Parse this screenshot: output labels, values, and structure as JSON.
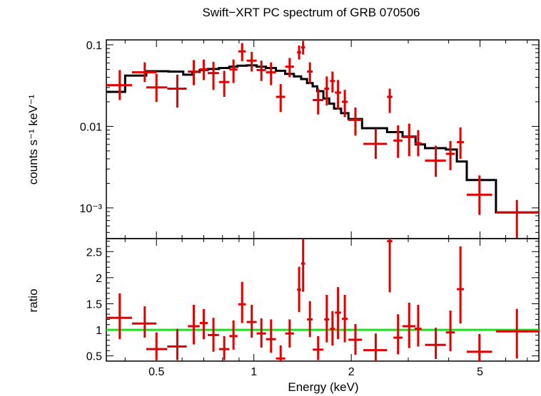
{
  "chart_data": [
    {
      "type": "scatter",
      "title": "Swift−XRT PC spectrum of GRB 070506",
      "xlabel": "",
      "ylabel": "counts s⁻¹ keV⁻¹",
      "xscale": "log",
      "yscale": "log",
      "xlim": [
        0.35,
        7.6
      ],
      "ylim": [
        0.00042,
        0.115
      ],
      "x_tick_labels": [],
      "y_ticks": [
        {
          "value": 0.1,
          "label": "0.1"
        },
        {
          "value": 0.01,
          "label": "0.01"
        },
        {
          "value": 0.001,
          "label": "10⁻³"
        }
      ],
      "colors": {
        "data": "#e00000",
        "model": "#000000"
      },
      "series": [
        {
          "style": "crosses",
          "points": [
            {
              "x": 0.385,
              "xlo": 0.35,
              "xhi": 0.42,
              "y": 0.032,
              "ylo": 0.021,
              "yhi": 0.049
            },
            {
              "x": 0.46,
              "xlo": 0.42,
              "xhi": 0.5,
              "y": 0.046,
              "ylo": 0.035,
              "yhi": 0.061
            },
            {
              "x": 0.5,
              "xlo": 0.465,
              "xhi": 0.54,
              "y": 0.03,
              "ylo": 0.02,
              "yhi": 0.044
            },
            {
              "x": 0.58,
              "xlo": 0.54,
              "xhi": 0.62,
              "y": 0.029,
              "ylo": 0.017,
              "yhi": 0.043
            },
            {
              "x": 0.652,
              "xlo": 0.625,
              "xhi": 0.68,
              "y": 0.047,
              "ylo": 0.032,
              "yhi": 0.065
            },
            {
              "x": 0.7,
              "xlo": 0.68,
              "xhi": 0.72,
              "y": 0.05,
              "ylo": 0.037,
              "yhi": 0.066
            },
            {
              "x": 0.75,
              "xlo": 0.72,
              "xhi": 0.78,
              "y": 0.045,
              "ylo": 0.028,
              "yhi": 0.062
            },
            {
              "x": 0.81,
              "xlo": 0.78,
              "xhi": 0.84,
              "y": 0.035,
              "ylo": 0.023,
              "yhi": 0.048
            },
            {
              "x": 0.865,
              "xlo": 0.84,
              "xhi": 0.89,
              "y": 0.05,
              "ylo": 0.034,
              "yhi": 0.066
            },
            {
              "x": 0.92,
              "xlo": 0.895,
              "xhi": 0.945,
              "y": 0.083,
              "ylo": 0.063,
              "yhi": 0.105
            },
            {
              "x": 0.985,
              "xlo": 0.95,
              "xhi": 1.02,
              "y": 0.064,
              "ylo": 0.047,
              "yhi": 0.082
            },
            {
              "x": 1.055,
              "xlo": 1.02,
              "xhi": 1.09,
              "y": 0.049,
              "ylo": 0.036,
              "yhi": 0.064
            },
            {
              "x": 1.13,
              "xlo": 1.09,
              "xhi": 1.17,
              "y": 0.046,
              "ylo": 0.032,
              "yhi": 0.061
            },
            {
              "x": 1.21,
              "xlo": 1.17,
              "xhi": 1.25,
              "y": 0.023,
              "ylo": 0.015,
              "yhi": 0.033
            },
            {
              "x": 1.29,
              "xlo": 1.25,
              "xhi": 1.33,
              "y": 0.054,
              "ylo": 0.04,
              "yhi": 0.069
            },
            {
              "x": 1.38,
              "xlo": 1.36,
              "xhi": 1.4,
              "y": 0.081,
              "ylo": 0.066,
              "yhi": 0.098
            },
            {
              "x": 1.42,
              "xlo": 1.4,
              "xhi": 1.44,
              "y": 0.093,
              "ylo": 0.076,
              "yhi": 0.112
            },
            {
              "x": 1.49,
              "xlo": 1.46,
              "xhi": 1.52,
              "y": 0.047,
              "ylo": 0.033,
              "yhi": 0.061
            },
            {
              "x": 1.58,
              "xlo": 1.52,
              "xhi": 1.64,
              "y": 0.021,
              "ylo": 0.014,
              "yhi": 0.029
            },
            {
              "x": 1.68,
              "xlo": 1.65,
              "xhi": 1.71,
              "y": 0.029,
              "ylo": 0.018,
              "yhi": 0.041
            },
            {
              "x": 1.75,
              "xlo": 1.72,
              "xhi": 1.78,
              "y": 0.036,
              "ylo": 0.026,
              "yhi": 0.047
            },
            {
              "x": 1.82,
              "xlo": 1.78,
              "xhi": 1.86,
              "y": 0.026,
              "ylo": 0.016,
              "yhi": 0.037
            },
            {
              "x": 1.91,
              "xlo": 1.87,
              "xhi": 1.95,
              "y": 0.02,
              "ylo": 0.013,
              "yhi": 0.028
            },
            {
              "x": 2.06,
              "xlo": 1.96,
              "xhi": 2.16,
              "y": 0.012,
              "ylo": 0.0077,
              "yhi": 0.017
            },
            {
              "x": 2.38,
              "xlo": 2.18,
              "xhi": 2.58,
              "y": 0.0061,
              "ylo": 0.004,
              "yhi": 0.0094
            },
            {
              "x": 2.63,
              "xlo": 2.58,
              "xhi": 2.68,
              "y": 0.023,
              "ylo": 0.0146,
              "yhi": 0.029
            },
            {
              "x": 2.79,
              "xlo": 2.7,
              "xhi": 2.88,
              "y": 0.0067,
              "ylo": 0.0041,
              "yhi": 0.0103
            },
            {
              "x": 3.02,
              "xlo": 2.88,
              "xhi": 3.16,
              "y": 0.0074,
              "ylo": 0.0043,
              "yhi": 0.0108
            },
            {
              "x": 3.22,
              "xlo": 3.14,
              "xhi": 3.3,
              "y": 0.0062,
              "ylo": 0.0043,
              "yhi": 0.009
            },
            {
              "x": 3.65,
              "xlo": 3.38,
              "xhi": 3.92,
              "y": 0.0038,
              "ylo": 0.0024,
              "yhi": 0.0058
            },
            {
              "x": 4.05,
              "xlo": 3.92,
              "xhi": 4.18,
              "y": 0.0046,
              "ylo": 0.0029,
              "yhi": 0.0066
            },
            {
              "x": 4.35,
              "xlo": 4.24,
              "xhi": 4.46,
              "y": 0.0064,
              "ylo": 0.004,
              "yhi": 0.0097
            },
            {
              "x": 4.98,
              "xlo": 4.55,
              "xhi": 5.45,
              "y": 0.00145,
              "ylo": 0.00082,
              "yhi": 0.0025
            },
            {
              "x": 6.5,
              "xlo": 5.6,
              "xhi": 7.6,
              "y": 0.00088,
              "ylo": 0.00042,
              "yhi": 0.00125
            }
          ]
        },
        {
          "style": "histogram",
          "edges": [
            0.35,
            0.4,
            0.465,
            0.545,
            0.605,
            0.645,
            0.68,
            0.72,
            0.78,
            0.84,
            0.89,
            0.95,
            1.02,
            1.09,
            1.17,
            1.25,
            1.33,
            1.4,
            1.46,
            1.52,
            1.57,
            1.64,
            1.71,
            1.77,
            1.86,
            1.96,
            2.16,
            2.58,
            2.88,
            3.16,
            3.38,
            3.92,
            4.24,
            4.55,
            5.6,
            7.6
          ],
          "values": [
            0.0265,
            0.042,
            0.0475,
            0.047,
            0.043,
            0.0465,
            0.049,
            0.0505,
            0.052,
            0.054,
            0.0555,
            0.056,
            0.054,
            0.052,
            0.048,
            0.044,
            0.041,
            0.038,
            0.034,
            0.031,
            0.027,
            0.022,
            0.019,
            0.0165,
            0.0145,
            0.0123,
            0.0095,
            0.0085,
            0.0075,
            0.006,
            0.0054,
            0.0052,
            0.0037,
            0.0022,
            0.00088
          ]
        }
      ]
    },
    {
      "type": "scatter",
      "title": "",
      "xlabel": "Energy (keV)",
      "ylabel": "ratio",
      "xscale": "log",
      "xlim": [
        0.35,
        7.6
      ],
      "ylim": [
        0.4,
        2.75
      ],
      "x_ticks": [
        {
          "value": 0.5,
          "label": "0.5"
        },
        {
          "value": 1,
          "label": "1"
        },
        {
          "value": 2,
          "label": "2"
        },
        {
          "value": 5,
          "label": "5"
        }
      ],
      "y_ticks": [
        {
          "value": 0.5,
          "label": "0.5"
        },
        {
          "value": 1,
          "label": "1"
        },
        {
          "value": 1.5,
          "label": "1.5"
        },
        {
          "value": 2,
          "label": "2"
        },
        {
          "value": 2.5,
          "label": "2.5"
        }
      ],
      "reference_line": {
        "y": 1,
        "color": "#22dd22"
      },
      "colors": {
        "data": "#e00000"
      },
      "series": [
        {
          "style": "crosses",
          "points": [
            {
              "x": 0.385,
              "xlo": 0.35,
              "xhi": 0.42,
              "y": 1.23,
              "ylo": 0.82,
              "yhi": 1.7
            },
            {
              "x": 0.46,
              "xlo": 0.42,
              "xhi": 0.5,
              "y": 1.12,
              "ylo": 0.85,
              "yhi": 1.45
            },
            {
              "x": 0.5,
              "xlo": 0.465,
              "xhi": 0.54,
              "y": 0.63,
              "ylo": 0.42,
              "yhi": 0.95
            },
            {
              "x": 0.58,
              "xlo": 0.54,
              "xhi": 0.62,
              "y": 0.68,
              "ylo": 0.42,
              "yhi": 1.02
            },
            {
              "x": 0.652,
              "xlo": 0.625,
              "xhi": 0.68,
              "y": 1.07,
              "ylo": 0.72,
              "yhi": 1.48
            },
            {
              "x": 0.7,
              "xlo": 0.68,
              "xhi": 0.72,
              "y": 1.13,
              "ylo": 0.82,
              "yhi": 1.4
            },
            {
              "x": 0.75,
              "xlo": 0.72,
              "xhi": 0.78,
              "y": 0.9,
              "ylo": 0.58,
              "yhi": 1.23
            },
            {
              "x": 0.81,
              "xlo": 0.78,
              "xhi": 0.84,
              "y": 0.63,
              "ylo": 0.42,
              "yhi": 0.88
            },
            {
              "x": 0.865,
              "xlo": 0.84,
              "xhi": 0.89,
              "y": 0.88,
              "ylo": 0.62,
              "yhi": 1.18
            },
            {
              "x": 0.92,
              "xlo": 0.895,
              "xhi": 0.945,
              "y": 1.49,
              "ylo": 1.13,
              "yhi": 1.92
            },
            {
              "x": 0.985,
              "xlo": 0.95,
              "xhi": 1.02,
              "y": 1.15,
              "ylo": 0.85,
              "yhi": 1.48
            },
            {
              "x": 1.055,
              "xlo": 1.02,
              "xhi": 1.09,
              "y": 0.93,
              "ylo": 0.66,
              "yhi": 1.22
            },
            {
              "x": 1.13,
              "xlo": 1.09,
              "xhi": 1.17,
              "y": 0.82,
              "ylo": 0.56,
              "yhi": 1.2
            },
            {
              "x": 1.21,
              "xlo": 1.17,
              "xhi": 1.25,
              "y": 0.45,
              "ylo": 0.4,
              "yhi": 0.7
            },
            {
              "x": 1.29,
              "xlo": 1.25,
              "xhi": 1.33,
              "y": 0.93,
              "ylo": 0.66,
              "yhi": 1.2
            },
            {
              "x": 1.38,
              "xlo": 1.36,
              "xhi": 1.4,
              "y": 1.77,
              "ylo": 1.34,
              "yhi": 2.21
            },
            {
              "x": 1.42,
              "xlo": 1.4,
              "xhi": 1.44,
              "y": 2.27,
              "ylo": 1.73,
              "yhi": 2.83
            },
            {
              "x": 1.49,
              "xlo": 1.46,
              "xhi": 1.52,
              "y": 1.2,
              "ylo": 0.86,
              "yhi": 1.55
            },
            {
              "x": 1.58,
              "xlo": 1.52,
              "xhi": 1.64,
              "y": 0.62,
              "ylo": 0.42,
              "yhi": 0.88
            },
            {
              "x": 1.68,
              "xlo": 1.65,
              "xhi": 1.71,
              "y": 1.2,
              "ylo": 0.76,
              "yhi": 1.67
            },
            {
              "x": 1.75,
              "xlo": 1.72,
              "xhi": 1.78,
              "y": 1.02,
              "ylo": 0.7,
              "yhi": 1.36
            },
            {
              "x": 1.82,
              "xlo": 1.78,
              "xhi": 1.86,
              "y": 1.33,
              "ylo": 0.82,
              "yhi": 1.82
            },
            {
              "x": 1.91,
              "xlo": 1.87,
              "xhi": 1.95,
              "y": 1.21,
              "ylo": 0.76,
              "yhi": 1.67
            },
            {
              "x": 2.06,
              "xlo": 1.96,
              "xhi": 2.16,
              "y": 0.81,
              "ylo": 0.52,
              "yhi": 1.11
            },
            {
              "x": 2.38,
              "xlo": 2.18,
              "xhi": 2.58,
              "y": 0.61,
              "ylo": 0.4,
              "yhi": 0.93
            },
            {
              "x": 2.63,
              "xlo": 2.58,
              "xhi": 2.68,
              "y": 2.7,
              "ylo": 1.72,
              "yhi": 2.8
            },
            {
              "x": 2.79,
              "xlo": 2.7,
              "xhi": 2.88,
              "y": 0.85,
              "ylo": 0.53,
              "yhi": 1.3
            },
            {
              "x": 3.02,
              "xlo": 2.88,
              "xhi": 3.16,
              "y": 1.07,
              "ylo": 0.65,
              "yhi": 1.52
            },
            {
              "x": 3.22,
              "xlo": 3.14,
              "xhi": 3.3,
              "y": 1.02,
              "ylo": 0.68,
              "yhi": 1.48
            },
            {
              "x": 3.65,
              "xlo": 3.38,
              "xhi": 3.92,
              "y": 0.71,
              "ylo": 0.44,
              "yhi": 1.04
            },
            {
              "x": 4.05,
              "xlo": 3.92,
              "xhi": 4.18,
              "y": 0.95,
              "ylo": 0.59,
              "yhi": 1.37
            },
            {
              "x": 4.35,
              "xlo": 4.24,
              "xhi": 4.46,
              "y": 1.78,
              "ylo": 1.12,
              "yhi": 2.6
            },
            {
              "x": 4.98,
              "xlo": 4.55,
              "xhi": 5.45,
              "y": 0.58,
              "ylo": 0.4,
              "yhi": 0.92
            },
            {
              "x": 6.5,
              "xlo": 5.6,
              "xhi": 7.6,
              "y": 0.97,
              "ylo": 0.45,
              "yhi": 1.4
            }
          ]
        }
      ]
    }
  ]
}
